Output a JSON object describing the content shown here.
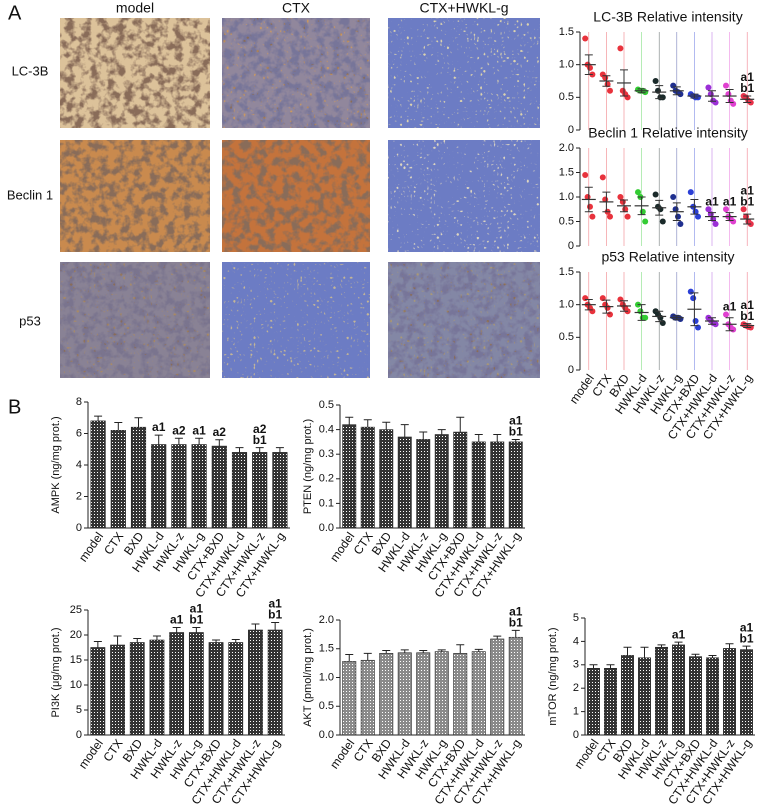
{
  "panel_labels": [
    "A",
    "B"
  ],
  "images": {
    "columns": [
      "model",
      "CTX",
      "CTX+HWKL-g"
    ],
    "rows": [
      "LC-3B",
      "Beclin 1",
      "p53"
    ]
  },
  "chart_data": [
    {
      "type": "dot",
      "title": "LC-3B Relative intensity",
      "colors": [
        "#e8323c",
        "#e8323c",
        "#e8323c",
        "#33cc33",
        "#1a2a2a",
        "#1f2f8f",
        "#2b3fd6",
        "#9b2fd6",
        "#e040d0",
        "#e8324a"
      ],
      "values": [
        1.0,
        0.75,
        0.72,
        0.6,
        0.58,
        0.6,
        0.52,
        0.52,
        0.52,
        0.47
      ],
      "errors": [
        0.15,
        0.08,
        0.2,
        0.03,
        0.1,
        0.06,
        0.03,
        0.08,
        0.1,
        0.05
      ],
      "points": [
        [
          1.4,
          1.0,
          0.95,
          0.85
        ],
        [
          0.85,
          0.8,
          0.7,
          0.6
        ],
        [
          1.25,
          0.6,
          0.55,
          0.5
        ],
        [
          0.62,
          0.6,
          0.6,
          0.58
        ],
        [
          0.75,
          0.6,
          0.5,
          0.5
        ],
        [
          0.68,
          0.6,
          0.58,
          0.55
        ],
        [
          0.55,
          0.52,
          0.5,
          0.5
        ],
        [
          0.65,
          0.55,
          0.45,
          0.42
        ],
        [
          0.68,
          0.55,
          0.45,
          0.4
        ],
        [
          0.52,
          0.5,
          0.45,
          0.42
        ]
      ],
      "annotations": [
        null,
        null,
        null,
        null,
        null,
        null,
        null,
        null,
        null,
        [
          "a1",
          "b1"
        ]
      ],
      "ylim": [
        0,
        1.5
      ],
      "yticks": [
        0,
        0.5,
        {
          "value": 1,
          "label": "1.0"
        },
        1.5
      ]
    },
    {
      "type": "dot",
      "title": "Beclin 1 Relative intensity",
      "colors": [
        "#e8323c",
        "#e8323c",
        "#e8323c",
        "#33cc33",
        "#1a2a2a",
        "#1f2f8f",
        "#2b3fd6",
        "#9b2fd6",
        "#e040d0",
        "#e8324a"
      ],
      "values": [
        0.95,
        0.9,
        0.82,
        0.82,
        0.78,
        0.7,
        0.8,
        0.6,
        0.6,
        0.55
      ],
      "errors": [
        0.25,
        0.2,
        0.12,
        0.18,
        0.15,
        0.18,
        0.15,
        0.08,
        0.08,
        0.1
      ],
      "points": [
        [
          1.45,
          1.0,
          0.8,
          0.6
        ],
        [
          1.4,
          0.95,
          0.7,
          0.6
        ],
        [
          1.0,
          0.9,
          0.75,
          0.6
        ],
        [
          1.1,
          1.0,
          0.7,
          0.5
        ],
        [
          1.05,
          0.8,
          0.75,
          0.5
        ],
        [
          1.0,
          0.75,
          0.6,
          0.45
        ],
        [
          1.1,
          0.8,
          0.7,
          0.6
        ],
        [
          0.75,
          0.65,
          0.55,
          0.45
        ],
        [
          0.75,
          0.6,
          0.55,
          0.5
        ],
        [
          0.75,
          0.6,
          0.5,
          0.45
        ]
      ],
      "annotations": [
        null,
        null,
        null,
        null,
        null,
        null,
        null,
        [
          "a1"
        ],
        [
          "a1"
        ],
        [
          "a1",
          "b1"
        ]
      ],
      "ylim": [
        0,
        2
      ],
      "yticks": [
        0,
        0.5,
        {
          "value": 1,
          "label": "1.0"
        },
        1.5,
        {
          "value": 2,
          "label": "2.0"
        }
      ]
    },
    {
      "type": "dot",
      "title": "p53 Relative intensity",
      "categories": [
        "model",
        "CTX",
        "BXD",
        "HWKL-d",
        "HWKL-z",
        "HWKL-g",
        "CTX+BXD",
        "CTX+HWKL-d",
        "CTX+HWKL-z",
        "CTX+HWKL-g"
      ],
      "colors": [
        "#e8323c",
        "#e8323c",
        "#e8323c",
        "#33cc33",
        "#1a2a2a",
        "#1f2f8f",
        "#2b3fd6",
        "#9b2fd6",
        "#e040d0",
        "#e8324a"
      ],
      "values": [
        1.0,
        0.97,
        0.98,
        0.88,
        0.82,
        0.8,
        0.93,
        0.75,
        0.7,
        0.68
      ],
      "errors": [
        0.08,
        0.1,
        0.08,
        0.12,
        0.08,
        0.03,
        0.25,
        0.05,
        0.1,
        0.03
      ],
      "points": [
        [
          1.1,
          1.0,
          0.95,
          0.9
        ],
        [
          1.1,
          1.0,
          0.95,
          0.85
        ],
        [
          1.08,
          1.0,
          0.95,
          0.9
        ],
        [
          1.0,
          0.9,
          0.8,
          0.8
        ],
        [
          0.9,
          0.85,
          0.8,
          0.72
        ],
        [
          0.82,
          0.8,
          0.8,
          0.78
        ],
        [
          1.2,
          1.1,
          0.75,
          0.65
        ],
        [
          0.8,
          0.76,
          0.72,
          0.7
        ],
        [
          0.85,
          0.7,
          0.65,
          0.62
        ],
        [
          0.7,
          0.68,
          0.66,
          0.65
        ]
      ],
      "annotations": [
        null,
        null,
        null,
        null,
        null,
        null,
        null,
        null,
        [
          "a1"
        ],
        [
          "a1",
          "b1"
        ]
      ],
      "ylim": [
        0,
        1.5
      ],
      "yticks": [
        0,
        0.5,
        {
          "value": 1,
          "label": "1.0"
        },
        1.5
      ]
    },
    {
      "type": "bar",
      "y_label": "AMPK (ng/mg prot.)",
      "color": "#333333",
      "categories": [
        "model",
        "CTX",
        "BXD",
        "HWKL-d",
        "HWKL-z",
        "HWKL-g",
        "CTX+BXD",
        "CTX+HWKL-d",
        "CTX+HWKL-z",
        "CTX+HWKL-g"
      ],
      "values": [
        6.8,
        6.2,
        6.4,
        5.3,
        5.3,
        5.3,
        5.2,
        4.8,
        4.8,
        4.8
      ],
      "errors": [
        0.3,
        0.5,
        0.6,
        0.6,
        0.4,
        0.4,
        0.4,
        0.3,
        0.3,
        0.3
      ],
      "annotations": [
        null,
        null,
        null,
        [
          "a1"
        ],
        [
          "a2"
        ],
        [
          "a1"
        ],
        [
          "a2"
        ],
        null,
        [
          "a2",
          "b1"
        ],
        null
      ],
      "ylim": [
        0,
        8
      ],
      "yticks": [
        0,
        2,
        4,
        6,
        8
      ]
    },
    {
      "type": "bar",
      "y_label": "PTEN (ng/mg prot.)",
      "color": "#333333",
      "categories": [
        "model",
        "CTX",
        "BXD",
        "HWKL-d",
        "HWKL-z",
        "HWKL-g",
        "CTX+BXD",
        "CTX+HWKL-d",
        "CTX+HWKL-z",
        "CTX+HWKL-g"
      ],
      "values": [
        0.42,
        0.41,
        0.4,
        0.37,
        0.36,
        0.38,
        0.39,
        0.35,
        0.35,
        0.35
      ],
      "errors": [
        0.03,
        0.03,
        0.03,
        0.05,
        0.03,
        0.02,
        0.06,
        0.03,
        0.03,
        0.01
      ],
      "annotations": [
        null,
        null,
        null,
        null,
        null,
        null,
        null,
        null,
        null,
        [
          "a1",
          "b1"
        ]
      ],
      "ylim": [
        0,
        0.5
      ],
      "yticks": [
        {
          "value": 0,
          "label": "0.0"
        },
        0.1,
        0.2,
        0.3,
        0.4,
        0.5
      ]
    },
    {
      "type": "bar",
      "y_label": "PI3K (μg/mg prot.)",
      "color": "#333333",
      "categories": [
        "model",
        "CTX",
        "BXD",
        "HWKL-d",
        "HWKL-z",
        "HWKL-g",
        "CTX+BXD",
        "CTX+HWKL-d",
        "CTX+HWKL-z",
        "CTX+HWKL-g"
      ],
      "values": [
        17.5,
        18,
        18.5,
        19,
        20.5,
        20.5,
        18.5,
        18.5,
        21,
        21
      ],
      "errors": [
        1.2,
        1.8,
        0.8,
        0.8,
        1.0,
        1.0,
        0.5,
        0.6,
        1.2,
        1.5
      ],
      "annotations": [
        null,
        null,
        null,
        null,
        [
          "a1"
        ],
        [
          "a1",
          "b1"
        ],
        null,
        null,
        null,
        [
          "a1",
          "b1"
        ]
      ],
      "ylim": [
        0,
        25
      ],
      "yticks": [
        0,
        5,
        10,
        15,
        20,
        25
      ]
    },
    {
      "type": "bar",
      "y_label": "AKT (pmol/mg prot.)",
      "color": "#8a8a8a",
      "categories": [
        "model",
        "CTX",
        "BXD",
        "HWKL-d",
        "HWKL-z",
        "HWKL-g",
        "CTX+BXD",
        "CTX+HWKL-d",
        "CTX+HWKL-z",
        "CTX+HWKL-g"
      ],
      "values": [
        1.28,
        1.3,
        1.42,
        1.43,
        1.43,
        1.45,
        1.42,
        1.45,
        1.67,
        1.7
      ],
      "errors": [
        0.12,
        0.12,
        0.05,
        0.05,
        0.04,
        0.03,
        0.15,
        0.04,
        0.05,
        0.12
      ],
      "annotations": [
        null,
        null,
        null,
        null,
        null,
        null,
        null,
        null,
        null,
        [
          "a1",
          "b1"
        ]
      ],
      "ylim": [
        0,
        2
      ],
      "yticks": [
        {
          "value": 0,
          "label": "0.0"
        },
        0.5,
        {
          "value": 1,
          "label": "1.0"
        },
        1.5,
        {
          "value": 2,
          "label": "2.0"
        }
      ]
    },
    {
      "type": "bar",
      "y_label": "mTOR (ng/mg prot.)",
      "color": "#333333",
      "categories": [
        "model",
        "CTX",
        "BXD",
        "HWKL-d",
        "HWKL-z",
        "HWKL-g",
        "CTX+BXD",
        "CTX+HWKL-d",
        "CTX+HWKL-z",
        "CTX+HWKL-g"
      ],
      "values": [
        2.85,
        2.85,
        3.4,
        3.3,
        3.75,
        3.85,
        3.35,
        3.3,
        3.7,
        3.65
      ],
      "errors": [
        0.15,
        0.15,
        0.35,
        0.45,
        0.1,
        0.12,
        0.1,
        0.1,
        0.2,
        0.15
      ],
      "annotations": [
        null,
        null,
        null,
        null,
        null,
        [
          "a1"
        ],
        null,
        null,
        null,
        [
          "a1",
          "b1"
        ]
      ],
      "ylim": [
        0,
        5
      ],
      "yticks": [
        0,
        1,
        2,
        3,
        4,
        5
      ]
    }
  ]
}
